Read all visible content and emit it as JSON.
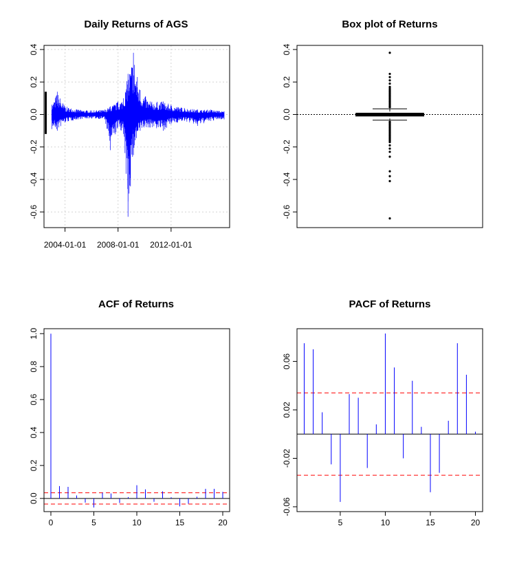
{
  "chart_data": [
    {
      "type": "line",
      "title": "Daily Returns of AGS",
      "xlabel": "",
      "ylabel": "",
      "x_tick_labels": [
        "2004-01-01",
        "2008-01-01",
        "2012-01-01"
      ],
      "x_range": [
        "2002-06-01",
        "2016-06-01"
      ],
      "ylim": [
        -0.65,
        0.4
      ],
      "y_ticks": [
        -0.6,
        -0.4,
        -0.2,
        0.0,
        0.2,
        0.4
      ],
      "y_tick_labels": [
        "-0.6",
        "-0.4",
        "-0.2",
        "0.0",
        "0.2",
        "0.4"
      ],
      "grid": true,
      "series_color": "#0000ff",
      "envelope": [
        {
          "x": "2003-01-01",
          "max": 0.06,
          "min": -0.09
        },
        {
          "x": "2003-06-01",
          "max": 0.14,
          "min": -0.1
        },
        {
          "x": "2004-01-01",
          "max": 0.05,
          "min": -0.05
        },
        {
          "x": "2005-01-01",
          "max": 0.03,
          "min": -0.03
        },
        {
          "x": "2006-01-01",
          "max": 0.025,
          "min": -0.025
        },
        {
          "x": "2007-01-01",
          "max": 0.03,
          "min": -0.03
        },
        {
          "x": "2007-06-01",
          "max": 0.05,
          "min": -0.22
        },
        {
          "x": "2008-01-01",
          "max": 0.08,
          "min": -0.08
        },
        {
          "x": "2008-06-01",
          "max": 0.1,
          "min": -0.12
        },
        {
          "x": "2008-10-01",
          "max": 0.25,
          "min": -0.63
        },
        {
          "x": "2009-03-01",
          "max": 0.38,
          "min": -0.25
        },
        {
          "x": "2009-09-01",
          "max": 0.15,
          "min": -0.1
        },
        {
          "x": "2010-06-01",
          "max": 0.08,
          "min": -0.08
        },
        {
          "x": "2011-06-01",
          "max": 0.08,
          "min": -0.1
        },
        {
          "x": "2012-01-01",
          "max": 0.06,
          "min": -0.06
        },
        {
          "x": "2013-01-01",
          "max": 0.04,
          "min": -0.04
        },
        {
          "x": "2014-01-01",
          "max": 0.03,
          "min": -0.07
        },
        {
          "x": "2015-01-01",
          "max": 0.03,
          "min": -0.04
        },
        {
          "x": "2016-01-01",
          "max": 0.02,
          "min": -0.03
        }
      ]
    },
    {
      "type": "box",
      "title": "Box plot of Returns",
      "xlabel": "",
      "ylabel": "",
      "ylim": [
        -0.65,
        0.4
      ],
      "y_ticks": [
        -0.6,
        -0.4,
        -0.2,
        0.0,
        0.2,
        0.4
      ],
      "y_tick_labels": [
        "-0.6",
        "-0.4",
        "-0.2",
        "0.0",
        "0.2",
        "0.4"
      ],
      "median": 0.0,
      "q1": -0.005,
      "q3": 0.005,
      "whisker_low": -0.035,
      "whisker_high": 0.035,
      "outliers": [
        0.38,
        0.25,
        0.23,
        0.21,
        0.19,
        0.17,
        0.15,
        0.14,
        0.13,
        0.12,
        0.11,
        0.1,
        0.09,
        0.08,
        0.07,
        0.06,
        0.05,
        0.045,
        -0.045,
        -0.05,
        -0.06,
        -0.07,
        -0.08,
        -0.09,
        -0.1,
        -0.11,
        -0.12,
        -0.13,
        -0.14,
        -0.15,
        -0.16,
        -0.17,
        -0.19,
        -0.21,
        -0.23,
        -0.26,
        -0.35,
        -0.38,
        -0.41,
        -0.64
      ],
      "reference_line": 0.0
    },
    {
      "type": "bar",
      "title": "ACF of Returns",
      "xlabel": "",
      "ylabel": "",
      "x": [
        0,
        1,
        2,
        3,
        4,
        5,
        6,
        7,
        8,
        9,
        10,
        11,
        12,
        13,
        14,
        15,
        16,
        17,
        18,
        19,
        20
      ],
      "values": [
        1.0,
        0.075,
        0.07,
        0.018,
        -0.025,
        -0.055,
        0.035,
        0.03,
        -0.028,
        0.008,
        0.08,
        0.055,
        -0.02,
        0.043,
        0.007,
        -0.048,
        -0.032,
        0.01,
        0.058,
        0.058,
        0.04
      ],
      "xlim": [
        -0.8,
        20.8
      ],
      "ylim": [
        -0.08,
        1.03
      ],
      "x_ticks": [
        0,
        5,
        10,
        15,
        20
      ],
      "x_tick_labels": [
        "0",
        "5",
        "10",
        "15",
        "20"
      ],
      "y_ticks": [
        0.0,
        0.2,
        0.4,
        0.6,
        0.8,
        1.0
      ],
      "y_tick_labels": [
        "0.0",
        "0.2",
        "0.4",
        "0.6",
        "0.8",
        "1.0"
      ],
      "confidence_band": 0.034
    },
    {
      "type": "bar",
      "title": "PACF of Returns",
      "xlabel": "",
      "ylabel": "",
      "x": [
        1,
        2,
        3,
        4,
        5,
        6,
        7,
        8,
        9,
        10,
        11,
        12,
        13,
        14,
        15,
        16,
        17,
        18,
        19,
        20
      ],
      "values": [
        0.075,
        0.07,
        0.018,
        -0.025,
        -0.056,
        0.033,
        0.03,
        -0.028,
        0.008,
        0.083,
        0.055,
        -0.02,
        0.044,
        0.006,
        -0.048,
        -0.032,
        0.011,
        0.075,
        0.049,
        0.002
      ],
      "xlim": [
        0.2,
        20.8
      ],
      "ylim": [
        -0.064,
        0.087
      ],
      "x_ticks": [
        5,
        10,
        15,
        20
      ],
      "x_tick_labels": [
        "5",
        "10",
        "15",
        "20"
      ],
      "y_ticks": [
        -0.06,
        -0.02,
        0.02,
        0.06
      ],
      "y_tick_labels": [
        "-0.06",
        "-0.02",
        "0.02",
        "0.06"
      ],
      "confidence_band": 0.034
    }
  ],
  "colors": {
    "series": "#0000ff",
    "confidence": "#ff0000",
    "grid": "#d3d3d3",
    "axis": "#000000"
  }
}
